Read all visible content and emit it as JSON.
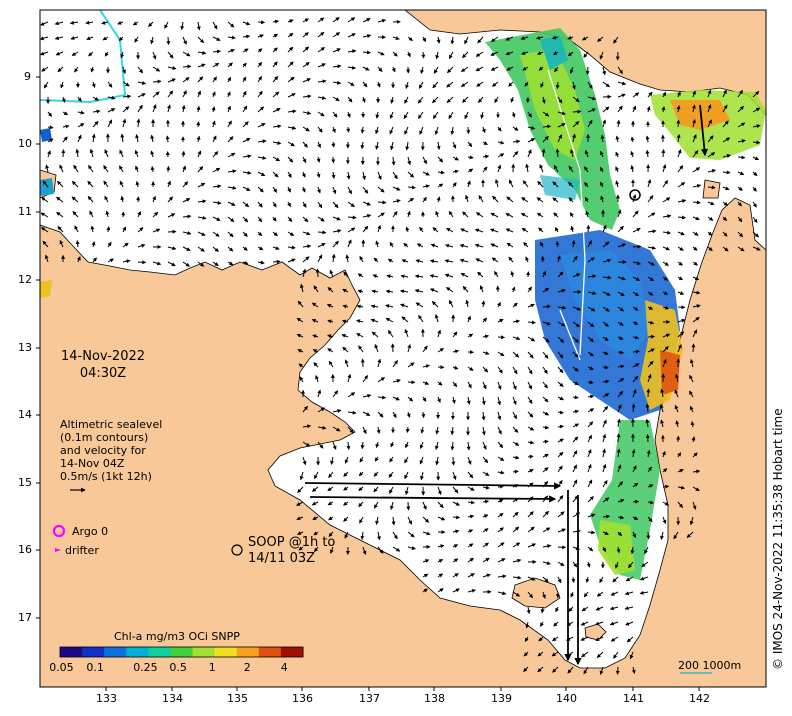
{
  "date": {
    "day": "14-Nov-2022",
    "time": "04:30Z"
  },
  "legend_text": {
    "line1": "Altimetric sealevel",
    "line2": "(0.1m contours)",
    "line3": "and velocity for",
    "line4": "14-Nov 04Z",
    "line5": "0.5m/s (1kt 12h)"
  },
  "argo_label": "Argo 0",
  "drifter_label": "drifter",
  "soop": {
    "line1": "SOOP @1h to",
    "line2": "14/11 03Z"
  },
  "colorbar": {
    "title": "Chl-a mg/m3 OCi SNPP",
    "ticks": [
      "0.05",
      "0.1",
      "0.25",
      "0.5",
      "1",
      "2",
      "4"
    ],
    "colors": [
      "#1a0a8a",
      "#1030c8",
      "#0a70e0",
      "#00b0d8",
      "#10d0a0",
      "#40d040",
      "#a0e030",
      "#f0e020",
      "#f8a020",
      "#e05010",
      "#a01000"
    ]
  },
  "scale_bar": {
    "label": "200  1000m"
  },
  "credit": "© IMOS 24-Nov-2022 11:35:38 Hobart time",
  "axes": {
    "x_ticks": [
      "133",
      "134",
      "135",
      "136",
      "137",
      "138",
      "139",
      "140",
      "141",
      "142"
    ],
    "y_ticks": [
      "9",
      "10",
      "11",
      "12",
      "13",
      "14",
      "15",
      "16",
      "17"
    ]
  },
  "colors": {
    "land": "#f8c898",
    "water": "#ffffff",
    "argo": "#ff00ff"
  }
}
